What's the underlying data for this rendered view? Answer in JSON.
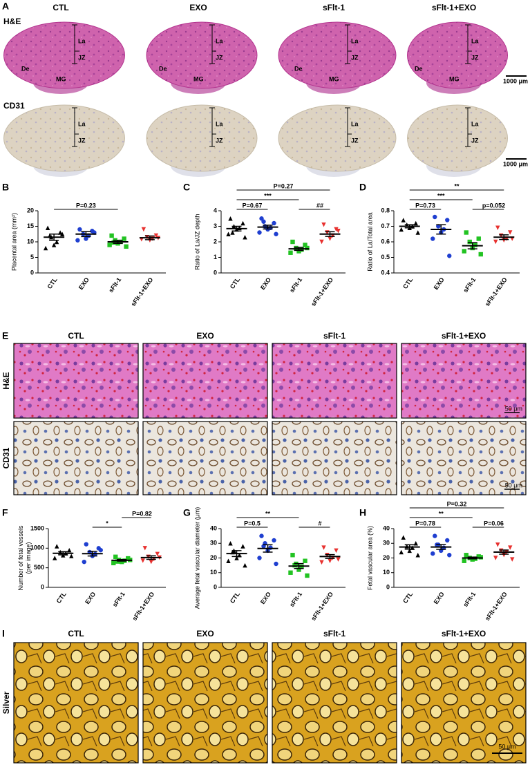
{
  "panel_labels": [
    "A",
    "B",
    "C",
    "D",
    "E",
    "F",
    "G",
    "H",
    "I"
  ],
  "groups": [
    "CTL",
    "EXO",
    "sFlt-1",
    "sFlt-1+EXO"
  ],
  "panel_a": {
    "rows": [
      "H&E",
      "CD31"
    ],
    "labels": {
      "la": "La",
      "jz": "JZ",
      "de": "De",
      "mg": "MG"
    },
    "scale_bar": "1000 μm"
  },
  "panel_e": {
    "rows": [
      "H&E",
      "CD31"
    ],
    "scale_bar": "50 μm"
  },
  "panel_i": {
    "rows": [
      "Silver"
    ],
    "scale_bar": "50 μm"
  },
  "chart_data": [
    {
      "type": "dot",
      "ylabel": [
        "Placental area (mm²)"
      ],
      "categories": [
        "CTL",
        "EXO",
        "sFlt-1",
        "sFlt-1+EXO"
      ],
      "colors": [
        "#000000",
        "#1f3fd0",
        "#22c322",
        "#e8312f"
      ],
      "markers": [
        "triangle",
        "circle",
        "square",
        "triangle-down"
      ],
      "points": [
        [
          14.5,
          13,
          11.5,
          10,
          9,
          8,
          12.5,
          12
        ],
        [
          14,
          13.5,
          12.5,
          12,
          11,
          10.5,
          13
        ],
        [
          12,
          11,
          10.5,
          10,
          9.5,
          9,
          8.5,
          9.8
        ],
        [
          14,
          12,
          11.5,
          11,
          10.5,
          10.8,
          11.2
        ]
      ],
      "means": [
        11.5,
        12.5,
        10,
        11.3
      ],
      "sems": [
        1,
        0.8,
        0.5,
        0.6
      ],
      "ylim": [
        0,
        20
      ],
      "yticks": [
        0,
        5,
        10,
        15,
        20
      ],
      "comparisons": [
        {
          "label": "P=0.23",
          "between": [
            "CTL",
            "sFlt-1"
          ]
        }
      ]
    },
    {
      "type": "dot",
      "ylabel": [
        "Ratio of La/JZ depth"
      ],
      "categories": [
        "CTL",
        "EXO",
        "sFlt-1",
        "sFlt-1+EXO"
      ],
      "colors": [
        "#000000",
        "#1f3fd0",
        "#22c322",
        "#e8312f"
      ],
      "markers": [
        "triangle",
        "circle",
        "square",
        "triangle-down"
      ],
      "points": [
        [
          3.5,
          3.2,
          3,
          2.9,
          2.8,
          2.5,
          2.3,
          2.6
        ],
        [
          3.5,
          3.2,
          3,
          2.9,
          2.8,
          2.6,
          2.5,
          3.3
        ],
        [
          2,
          1.8,
          1.6,
          1.5,
          1.4,
          1.3,
          1.6
        ],
        [
          3.1,
          2.8,
          2.6,
          2.4,
          2.2,
          2,
          2.7
        ]
      ],
      "means": [
        2.85,
        2.95,
        1.55,
        2.5
      ],
      "sems": [
        0.15,
        0.12,
        0.1,
        0.15
      ],
      "ylim": [
        0,
        4
      ],
      "yticks": [
        0,
        1,
        2,
        3,
        4
      ],
      "comparisons": [
        {
          "label": "P=0.67",
          "between": [
            "CTL",
            "EXO"
          ]
        },
        {
          "label": "##",
          "between": [
            "sFlt-1",
            "sFlt-1+EXO"
          ]
        },
        {
          "label": "***",
          "between": [
            "CTL",
            "sFlt-1"
          ]
        },
        {
          "label": "P=0.27",
          "between": [
            "CTL",
            "sFlt-1+EXO"
          ]
        }
      ]
    },
    {
      "type": "dot",
      "ylabel": [
        "Ratio of La/Total area"
      ],
      "categories": [
        "CTL",
        "EXO",
        "sFlt-1",
        "sFlt-1+EXO"
      ],
      "colors": [
        "#000000",
        "#1f3fd0",
        "#22c322",
        "#e8312f"
      ],
      "markers": [
        "triangle",
        "circle",
        "square",
        "triangle-down"
      ],
      "points": [
        [
          0.74,
          0.72,
          0.71,
          0.7,
          0.69,
          0.68,
          0.66
        ],
        [
          0.76,
          0.74,
          0.7,
          0.68,
          0.66,
          0.62,
          0.51
        ],
        [
          0.66,
          0.62,
          0.6,
          0.58,
          0.56,
          0.54,
          0.52
        ],
        [
          0.69,
          0.66,
          0.64,
          0.62,
          0.61,
          0.6,
          0.62
        ]
      ],
      "means": [
        0.7,
        0.68,
        0.575,
        0.63
      ],
      "sems": [
        0.01,
        0.03,
        0.02,
        0.015
      ],
      "ylim": [
        0.4,
        0.8
      ],
      "yticks": [
        0.4,
        0.5,
        0.6,
        0.7,
        0.8
      ],
      "comparisons": [
        {
          "label": "P=0.73",
          "between": [
            "CTL",
            "EXO"
          ]
        },
        {
          "label": "p=0.052",
          "between": [
            "sFlt-1",
            "sFlt-1+EXO"
          ]
        },
        {
          "label": "***",
          "between": [
            "CTL",
            "sFlt-1"
          ]
        },
        {
          "label": "**",
          "between": [
            "CTL",
            "sFlt-1+EXO"
          ]
        }
      ]
    },
    {
      "type": "dot",
      "ylabel": [
        "Number of fetal vessels",
        "(per image)"
      ],
      "categories": [
        "CTL",
        "EXO",
        "sFlt-1",
        "sFlt-1+EXO"
      ],
      "colors": [
        "#000000",
        "#1f3fd0",
        "#22c322",
        "#e8312f"
      ],
      "markers": [
        "triangle",
        "circle",
        "square",
        "triangle-down"
      ],
      "points": [
        [
          1050,
          950,
          900,
          870,
          820,
          750,
          800
        ],
        [
          1100,
          1000,
          900,
          850,
          800,
          650,
          950
        ],
        [
          780,
          740,
          700,
          680,
          650,
          620,
          700,
          660
        ],
        [
          1000,
          850,
          780,
          720,
          650,
          680,
          760
        ]
      ],
      "means": [
        870,
        860,
        690,
        760
      ],
      "sems": [
        40,
        60,
        20,
        45
      ],
      "ylim": [
        0,
        1500
      ],
      "yticks": [
        0,
        500,
        1000,
        1500
      ],
      "comparisons": [
        {
          "label": "*",
          "between": [
            "EXO",
            "sFlt-1"
          ]
        },
        {
          "label": "P=0.82",
          "between": [
            "sFlt-1",
            "sFlt-1+EXO"
          ]
        }
      ]
    },
    {
      "type": "dot",
      "ylabel": [
        "Average fetal vascular diameter (μm)"
      ],
      "categories": [
        "CTL",
        "EXO",
        "sFlt-1",
        "sFlt-1+EXO"
      ],
      "colors": [
        "#000000",
        "#1f3fd0",
        "#22c322",
        "#e8312f"
      ],
      "markers": [
        "triangle",
        "circle",
        "square",
        "triangle-down"
      ],
      "points": [
        [
          30,
          28,
          25,
          22,
          20,
          18,
          15,
          24
        ],
        [
          35,
          32,
          30,
          27,
          25,
          20,
          16,
          28
        ],
        [
          22,
          18,
          16,
          14,
          12,
          10,
          8,
          15
        ],
        [
          27,
          25,
          22,
          20,
          18,
          17,
          19
        ]
      ],
      "means": [
        23,
        26.5,
        14.5,
        21
      ],
      "sems": [
        2,
        2.5,
        1.7,
        1.3
      ],
      "ylim": [
        0,
        40
      ],
      "yticks": [
        0,
        10,
        20,
        30,
        40
      ],
      "comparisons": [
        {
          "label": "P=0.5",
          "between": [
            "CTL",
            "EXO"
          ]
        },
        {
          "label": "#",
          "between": [
            "sFlt-1",
            "sFlt-1+EXO"
          ]
        },
        {
          "label": "**",
          "between": [
            "CTL",
            "sFlt-1"
          ]
        }
      ]
    },
    {
      "type": "dot",
      "ylabel": [
        "Fetal vascular area (%)"
      ],
      "categories": [
        "CTL",
        "EXO",
        "sFlt-1",
        "sFlt-1+EXO"
      ],
      "colors": [
        "#000000",
        "#1f3fd0",
        "#22c322",
        "#e8312f"
      ],
      "markers": [
        "triangle",
        "circle",
        "square",
        "triangle-down"
      ],
      "points": [
        [
          34,
          30,
          28,
          27,
          25,
          24,
          22
        ],
        [
          35,
          32,
          29,
          27,
          25,
          23,
          22,
          29
        ],
        [
          22,
          21,
          20,
          19.5,
          19,
          18,
          20.5
        ],
        [
          29,
          27,
          25,
          24,
          22,
          20,
          19
        ]
      ],
      "means": [
        27.5,
        27.5,
        20,
        24
      ],
      "sems": [
        1.5,
        1.6,
        0.6,
        1.4
      ],
      "ylim": [
        0,
        40
      ],
      "yticks": [
        0,
        10,
        20,
        30,
        40
      ],
      "comparisons": [
        {
          "label": "P=0.78",
          "between": [
            "CTL",
            "EXO"
          ]
        },
        {
          "label": "P=0.06",
          "between": [
            "sFlt-1",
            "sFlt-1+EXO"
          ]
        },
        {
          "label": "**",
          "between": [
            "CTL",
            "sFlt-1"
          ]
        },
        {
          "label": "P=0.32",
          "between": [
            "CTL",
            "sFlt-1+EXO"
          ]
        }
      ]
    }
  ]
}
